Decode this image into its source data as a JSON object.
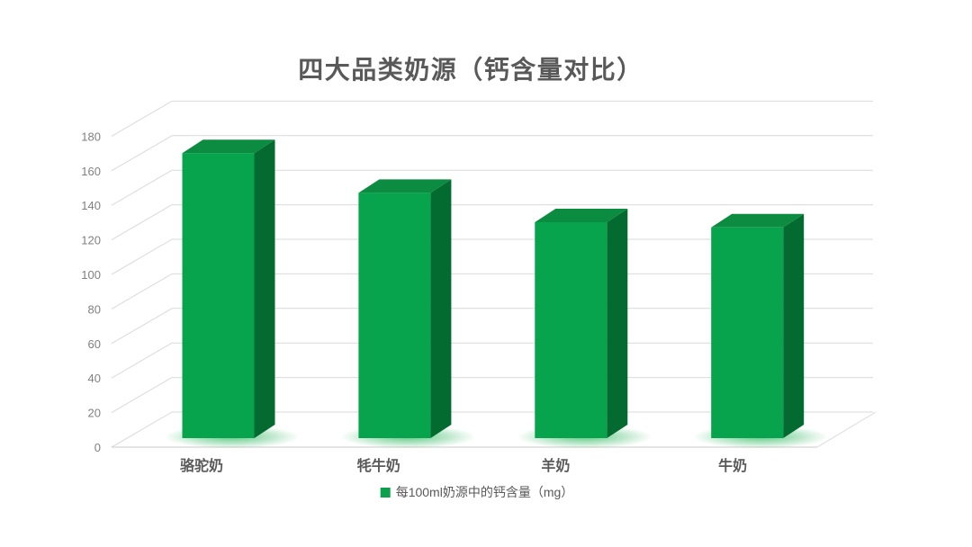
{
  "chart_data": {
    "type": "bar",
    "variant": "3d-column",
    "title": "四大品类奶源（钙含量对比）",
    "categories": [
      "骆驼奶",
      "牦牛奶",
      "羊奶",
      "牛奶"
    ],
    "series": [
      {
        "name": "每100ml奶源中的钙含量（mg）",
        "values": [
          165,
          142,
          125,
          122
        ]
      }
    ],
    "xlabel": "",
    "ylabel": "",
    "ylim": [
      0,
      180
    ],
    "yticks": [
      0,
      20,
      40,
      60,
      80,
      100,
      120,
      140,
      160,
      180
    ],
    "grid": true,
    "legend_position": "bottom",
    "colors": {
      "background": "#ffffff",
      "bar_front": "#07a44d",
      "bar_top": "#0c8c40",
      "bar_side": "#046b30",
      "bar_glow": "#3dbd6b",
      "gridline": "#d9d9d9",
      "floor_edge": "#c9c9c9",
      "title_text": "#595959",
      "tick_text": "#808080",
      "category_text": "#595959",
      "legend_text": "#595959",
      "legend_swatch": "#0ca04e"
    }
  }
}
